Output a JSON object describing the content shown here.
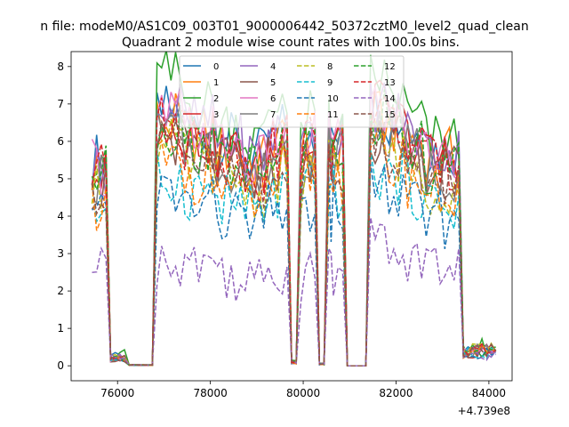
{
  "chart_data": {
    "type": "line",
    "suptitle": "n file: modeM0/AS1C09_003T01_9000006442_50372cztM0_level2_quad_clean",
    "title": "Quadrant 2 module wise count rates with 100.0s bins.",
    "xlabel": "",
    "ylabel": "",
    "x_offset_label": "+4.739e8",
    "xlim": [
      75000,
      84500
    ],
    "ylim": [
      -0.4,
      8.4
    ],
    "xticks": [
      76000,
      78000,
      80000,
      82000,
      84000
    ],
    "xtick_labels": [
      "76000",
      "78000",
      "80000",
      "82000",
      "84000"
    ],
    "yticks": [
      0,
      1,
      2,
      3,
      4,
      5,
      6,
      7,
      8
    ],
    "ytick_labels": [
      "0",
      "1",
      "2",
      "3",
      "4",
      "5",
      "6",
      "7",
      "8"
    ],
    "legend_position": "upper center",
    "grid": false,
    "x_segments": [
      [
        75450,
        76250
      ],
      [
        76250,
        77650
      ],
      [
        77650,
        79150
      ],
      [
        79150,
        79650
      ],
      [
        79650,
        80050
      ],
      [
        80050,
        80550
      ],
      [
        80550,
        80650
      ],
      [
        80650,
        81650
      ],
      [
        81650,
        82450
      ],
      [
        82450,
        84150
      ]
    ],
    "segments_desc": "gap = near-zero counts; active = fluctuating counts",
    "series": [
      {
        "name": "0",
        "color": "#1f77b4",
        "style": "solid",
        "level": 5.9,
        "pattern": [
          5.5,
          0.25,
          0.02,
          6.8,
          6.4,
          6.0,
          5.6,
          6.1,
          6.3,
          0.1,
          5.4,
          6.2,
          0.05,
          6.3,
          5.9,
          6.1,
          0.0,
          6.9,
          6.6,
          6.2,
          5.8,
          0.4
        ]
      },
      {
        "name": "1",
        "color": "#ff7f0e",
        "style": "solid",
        "level": 5.7,
        "pattern": [
          5.2,
          0.2,
          0.02,
          6.5,
          6.2,
          5.8,
          5.4,
          5.9,
          6.0,
          0.1,
          5.2,
          6.0,
          0.05,
          6.1,
          5.7,
          5.9,
          0.0,
          6.6,
          6.4,
          6.0,
          5.6,
          0.4
        ]
      },
      {
        "name": "2",
        "color": "#2ca02c",
        "style": "solid",
        "level": 6.2,
        "pattern": [
          5.8,
          0.3,
          0.02,
          7.7,
          7.0,
          6.5,
          6.0,
          6.9,
          7.4,
          0.1,
          5.8,
          6.6,
          0.05,
          7.3,
          6.2,
          6.5,
          0.0,
          7.7,
          7.2,
          6.6,
          6.0,
          0.5
        ]
      },
      {
        "name": "3",
        "color": "#d62728",
        "style": "solid",
        "level": 5.6,
        "pattern": [
          5.1,
          0.2,
          0.02,
          6.6,
          6.1,
          5.7,
          5.2,
          5.8,
          5.9,
          0.1,
          5.1,
          5.9,
          0.05,
          6.0,
          5.6,
          5.8,
          0.0,
          6.9,
          6.5,
          6.0,
          5.5,
          0.4
        ]
      },
      {
        "name": "4",
        "color": "#9467bd",
        "style": "solid",
        "level": 5.8,
        "pattern": [
          5.3,
          0.25,
          0.02,
          6.9,
          6.5,
          6.0,
          5.6,
          6.2,
          6.4,
          0.1,
          5.4,
          6.2,
          0.05,
          6.4,
          5.8,
          6.0,
          0.0,
          7.0,
          6.7,
          6.2,
          5.7,
          0.4
        ]
      },
      {
        "name": "5",
        "color": "#8c564b",
        "style": "solid",
        "level": 5.3,
        "pattern": [
          4.9,
          0.2,
          0.02,
          6.1,
          5.7,
          5.3,
          4.9,
          5.4,
          5.6,
          0.1,
          4.8,
          5.6,
          0.05,
          5.7,
          5.3,
          5.5,
          0.0,
          6.2,
          5.9,
          5.5,
          5.1,
          0.4
        ]
      },
      {
        "name": "6",
        "color": "#e377c2",
        "style": "solid",
        "level": 5.7,
        "pattern": [
          5.3,
          0.2,
          0.02,
          6.7,
          6.3,
          5.9,
          5.4,
          6.0,
          6.2,
          0.1,
          5.3,
          6.1,
          0.05,
          6.3,
          5.7,
          5.9,
          0.0,
          6.9,
          6.5,
          6.1,
          5.6,
          0.4
        ]
      },
      {
        "name": "7",
        "color": "#7f7f7f",
        "style": "solid",
        "level": 5.4,
        "pattern": [
          5.0,
          0.2,
          0.02,
          6.2,
          5.8,
          5.4,
          5.0,
          5.6,
          5.8,
          0.1,
          5.0,
          5.8,
          0.05,
          5.9,
          5.4,
          5.6,
          0.0,
          6.4,
          6.1,
          5.7,
          5.2,
          0.4
        ]
      },
      {
        "name": "8",
        "color": "#bcbd22",
        "style": "dashed",
        "level": 5.0,
        "pattern": [
          4.6,
          0.2,
          0.02,
          5.8,
          5.4,
          5.0,
          4.6,
          5.1,
          5.3,
          0.1,
          4.6,
          5.3,
          0.05,
          5.4,
          5.0,
          5.2,
          0.0,
          5.9,
          5.6,
          5.2,
          4.8,
          0.4
        ]
      },
      {
        "name": "9",
        "color": "#17becf",
        "style": "dashed",
        "level": 4.5,
        "pattern": [
          4.2,
          0.2,
          0.02,
          5.0,
          4.7,
          4.4,
          4.1,
          4.5,
          4.7,
          0.1,
          4.1,
          4.7,
          0.05,
          4.8,
          4.4,
          4.6,
          0.0,
          5.2,
          5.0,
          4.7,
          4.3,
          0.35
        ]
      },
      {
        "name": "10",
        "color": "#1f77b4",
        "style": "dashed",
        "level": 4.1,
        "pattern": [
          3.8,
          0.2,
          0.02,
          4.6,
          4.3,
          4.0,
          3.7,
          4.1,
          4.3,
          0.1,
          3.7,
          4.3,
          0.05,
          4.4,
          4.0,
          4.2,
          0.0,
          4.8,
          4.5,
          4.2,
          3.9,
          0.35
        ]
      },
      {
        "name": "11",
        "color": "#ff7f0e",
        "style": "dashed",
        "level": 4.8,
        "pattern": [
          4.4,
          0.2,
          0.02,
          5.4,
          5.1,
          4.8,
          4.4,
          4.9,
          5.1,
          0.1,
          4.4,
          5.1,
          0.05,
          5.2,
          4.8,
          5.0,
          0.0,
          5.7,
          5.4,
          5.0,
          4.6,
          0.4
        ]
      },
      {
        "name": "12",
        "color": "#2ca02c",
        "style": "dashed",
        "level": 5.5,
        "pattern": [
          5.1,
          0.2,
          0.02,
          6.3,
          5.9,
          5.5,
          5.1,
          5.7,
          5.9,
          0.1,
          5.1,
          5.9,
          0.05,
          6.0,
          5.5,
          5.7,
          0.0,
          6.6,
          6.3,
          5.8,
          5.3,
          0.4
        ]
      },
      {
        "name": "13",
        "color": "#d62728",
        "style": "dashed",
        "level": 5.6,
        "pattern": [
          5.2,
          0.2,
          0.02,
          6.4,
          6.0,
          5.6,
          5.2,
          5.8,
          6.0,
          0.1,
          5.2,
          6.0,
          0.05,
          6.1,
          5.6,
          5.8,
          0.0,
          6.8,
          6.4,
          5.9,
          5.4,
          0.4
        ]
      },
      {
        "name": "14",
        "color": "#9467bd",
        "style": "dashed",
        "level": 2.6,
        "pattern": [
          2.5,
          0.15,
          0.02,
          2.9,
          2.8,
          2.5,
          2.2,
          2.5,
          2.6,
          0.1,
          2.2,
          2.5,
          0.05,
          2.6,
          2.4,
          2.5,
          0.0,
          3.3,
          3.1,
          2.9,
          2.6,
          0.3
        ]
      },
      {
        "name": "15",
        "color": "#8c564b",
        "style": "dashed",
        "level": 5.1,
        "pattern": [
          4.7,
          0.2,
          0.02,
          5.8,
          5.4,
          5.1,
          4.7,
          5.2,
          5.4,
          0.1,
          4.7,
          5.4,
          0.05,
          5.5,
          5.1,
          5.3,
          0.0,
          6.0,
          5.7,
          5.3,
          4.9,
          0.4
        ]
      }
    ]
  }
}
